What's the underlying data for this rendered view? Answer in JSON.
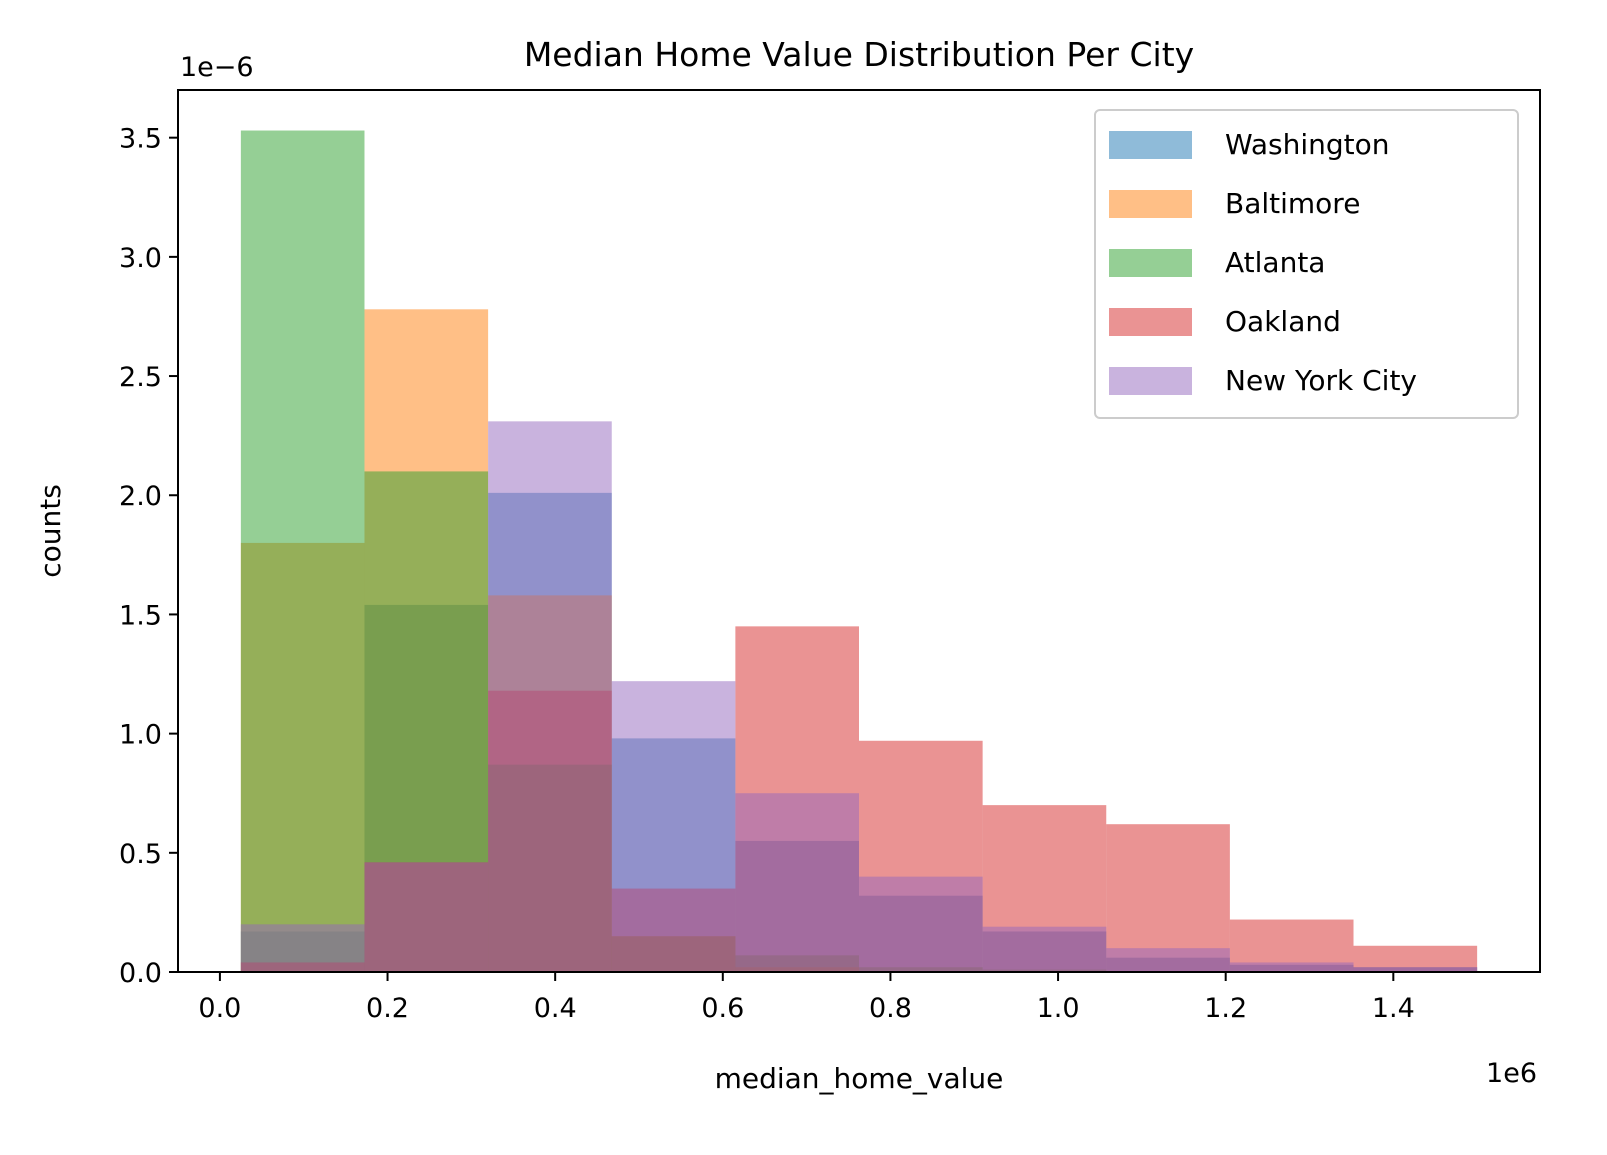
{
  "chart_data": {
    "type": "bar",
    "title": "Median Home Value Distribution Per City",
    "xlabel": "median_home_value",
    "ylabel": "counts",
    "x_offset_text": "1e6",
    "y_offset_text": "1e−6",
    "xlim": [
      -50000,
      1575000
    ],
    "ylim": [
      0,
      3.7e-06
    ],
    "xticks": [
      0,
      200000,
      400000,
      600000,
      800000,
      1000000,
      1200000,
      1400000
    ],
    "xtick_labels": [
      "0.0",
      "0.2",
      "0.4",
      "0.6",
      "0.8",
      "1.0",
      "1.2",
      "1.4"
    ],
    "yticks": [
      0,
      5e-07,
      1e-06,
      1.5e-06,
      2e-06,
      2.5e-06,
      3e-06,
      3.5e-06
    ],
    "ytick_labels": [
      "0.0",
      "0.5",
      "1.0",
      "1.5",
      "2.0",
      "2.5",
      "3.0",
      "3.5"
    ],
    "bin_edges": [
      25000,
      172500,
      320000,
      467500,
      615000,
      762500,
      910000,
      1057500,
      1205000,
      1352500,
      1500000
    ],
    "alpha": 0.5,
    "legend_position": "upper right",
    "grid": false,
    "series": [
      {
        "name": "Washington",
        "color": "#1f77b4",
        "values": [
          1.7e-07,
          1.54e-06,
          2.01e-06,
          9.8e-07,
          5.5e-07,
          3.2e-07,
          1.7e-07,
          6e-08,
          3e-08,
          2e-08
        ]
      },
      {
        "name": "Baltimore",
        "color": "#ff7f0e",
        "values": [
          1.8e-06,
          2.78e-06,
          1.58e-06,
          1.5e-07,
          2e-08,
          0,
          0,
          0,
          0,
          0
        ]
      },
      {
        "name": "Atlanta",
        "color": "#2ca02c",
        "values": [
          3.53e-06,
          2.1e-06,
          8.7e-07,
          1.5e-07,
          7e-08,
          2e-08,
          1e-08,
          0,
          0,
          0
        ]
      },
      {
        "name": "Oakland",
        "color": "#d62728",
        "values": [
          4e-08,
          4.6e-07,
          1.18e-06,
          3.5e-07,
          1.45e-06,
          9.7e-07,
          7e-07,
          6.2e-07,
          2.2e-07,
          1.1e-07
        ]
      },
      {
        "name": "New York City",
        "color": "#9467bd",
        "values": [
          2e-07,
          4.6e-07,
          2.31e-06,
          1.22e-06,
          7.5e-07,
          4e-07,
          1.9e-07,
          1e-07,
          4e-08,
          2e-08
        ]
      }
    ]
  }
}
